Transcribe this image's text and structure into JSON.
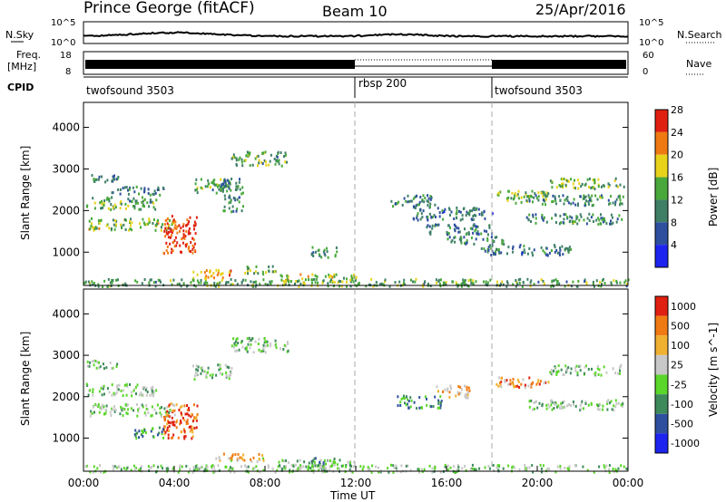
{
  "header": {
    "station": "Prince George (fitACF)",
    "beam": "Beam 10",
    "date": "25/Apr/2016"
  },
  "top_panels": {
    "nsky_label": "N.Sky",
    "nsky_ticks": [
      "10^5",
      "10^0"
    ],
    "nsearch_label": "N.Search",
    "nsearch_ticks": [
      "10^5",
      "10^0"
    ],
    "freq_label_top": "Freq.",
    "freq_label_bottom": "[MHz]",
    "freq_ticks": [
      "18",
      "8"
    ],
    "nave_label": "Nave",
    "nave_ticks": [
      "60",
      "0"
    ],
    "cpid_label": "CPID",
    "cpid_segments": [
      {
        "label": "twofsound 3503",
        "start_hour": 0
      },
      {
        "label": "rbsp 200",
        "start_hour": 12
      },
      {
        "label": "twofsound 3503",
        "start_hour": 18
      }
    ]
  },
  "chart_data": [
    {
      "type": "heatmap",
      "name": "power",
      "ylabel": "Slant Range [km]",
      "yticks": [
        "1000",
        "2000",
        "3000",
        "4000"
      ],
      "ylim": [
        200,
        4600
      ],
      "xlim": [
        0,
        24
      ],
      "colorbar_label": "Power [dB]",
      "colorbar_ticks": [
        "4",
        "8",
        "12",
        "16",
        "20",
        "24",
        "28"
      ],
      "colorbar_colors": [
        "#1d24f0",
        "#2d4f9e",
        "#3e7f66",
        "#48a83a",
        "#e8d21a",
        "#f07a12",
        "#e02010"
      ],
      "bands": [
        {
          "x": [
            0.1,
            1.5
          ],
          "y": [
            2700,
            2900
          ],
          "level": 0.35
        },
        {
          "x": [
            0.1,
            3.2
          ],
          "y": [
            2050,
            2350
          ],
          "level": 0.45
        },
        {
          "x": [
            0.2,
            4.0
          ],
          "y": [
            1550,
            1850
          ],
          "level": 0.55
        },
        {
          "x": [
            1.2,
            3.5
          ],
          "y": [
            2400,
            2600
          ],
          "level": 0.3
        },
        {
          "x": [
            3.5,
            5.0
          ],
          "y": [
            1000,
            1900
          ],
          "level": 0.9
        },
        {
          "x": [
            4.8,
            6.5
          ],
          "y": [
            2450,
            2800
          ],
          "level": 0.45
        },
        {
          "x": [
            6.5,
            9.0
          ],
          "y": [
            3100,
            3450
          ],
          "level": 0.45
        },
        {
          "x": [
            6.0,
            7.0
          ],
          "y": [
            2000,
            2800
          ],
          "level": 0.35
        },
        {
          "x": [
            4.8,
            6.8
          ],
          "y": [
            400,
            600
          ],
          "level": 0.7
        },
        {
          "x": [
            7.0,
            8.5
          ],
          "y": [
            500,
            700
          ],
          "level": 0.5
        },
        {
          "x": [
            8.5,
            12.0
          ],
          "y": [
            300,
            500
          ],
          "level": 0.6
        },
        {
          "x": [
            10.0,
            11.2
          ],
          "y": [
            900,
            1150
          ],
          "level": 0.4
        },
        {
          "x": [
            13.5,
            15.5
          ],
          "y": [
            2100,
            2400
          ],
          "level": 0.35
        },
        {
          "x": [
            14.5,
            18.0
          ],
          "y": [
            1800,
            2100
          ],
          "level": 0.3
        },
        {
          "x": [
            15.0,
            18.0
          ],
          "y": [
            1450,
            1700
          ],
          "level": 0.3
        },
        {
          "x": [
            16.0,
            18.5
          ],
          "y": [
            1200,
            1400
          ],
          "level": 0.35
        },
        {
          "x": [
            18.0,
            20.5
          ],
          "y": [
            2250,
            2500
          ],
          "level": 0.55
        },
        {
          "x": [
            19.0,
            23.8
          ],
          "y": [
            2150,
            2400
          ],
          "level": 0.4
        },
        {
          "x": [
            19.5,
            23.8
          ],
          "y": [
            1700,
            1950
          ],
          "level": 0.4
        },
        {
          "x": [
            20.5,
            23.8
          ],
          "y": [
            2550,
            2800
          ],
          "level": 0.5
        },
        {
          "x": [
            17.5,
            21.5
          ],
          "y": [
            950,
            1200
          ],
          "level": 0.3
        },
        {
          "x": [
            0.0,
            24.0
          ],
          "y": [
            200,
            380
          ],
          "level": 0.45
        }
      ]
    },
    {
      "type": "heatmap",
      "name": "velocity",
      "xlabel": "Time UT",
      "xticks": [
        "00:00",
        "04:00",
        "08:00",
        "12:00",
        "16:00",
        "20:00",
        "00:00"
      ],
      "ylabel": "Slant Range [km]",
      "yticks": [
        "1000",
        "2000",
        "3000",
        "4000"
      ],
      "ylim": [
        200,
        4600
      ],
      "xlim": [
        0,
        24
      ],
      "colorbar_label": "Velocity [m s^-1]",
      "colorbar_ticks": [
        "1000",
        "500",
        "100",
        "25",
        "-25",
        "-100",
        "-500",
        "-1000"
      ],
      "colorbar_colors": [
        "#1d24f0",
        "#2d4f9e",
        "#3e8a5a",
        "#5bd62a",
        "#c8c8c8",
        "#f0b030",
        "#f07a12",
        "#e02010"
      ],
      "bands": [
        {
          "x": [
            0.1,
            1.5
          ],
          "y": [
            2700,
            2900
          ],
          "level": 0.45
        },
        {
          "x": [
            0.1,
            3.2
          ],
          "y": [
            2050,
            2350
          ],
          "level": 0.45
        },
        {
          "x": [
            0.2,
            4.0
          ],
          "y": [
            1550,
            1850
          ],
          "level": 0.45
        },
        {
          "x": [
            3.5,
            5.0
          ],
          "y": [
            1000,
            1900
          ],
          "level": 0.85
        },
        {
          "x": [
            2.2,
            3.5
          ],
          "y": [
            1000,
            1300
          ],
          "level": 0.3
        },
        {
          "x": [
            4.8,
            6.5
          ],
          "y": [
            2450,
            2800
          ],
          "level": 0.45
        },
        {
          "x": [
            6.5,
            9.0
          ],
          "y": [
            3100,
            3450
          ],
          "level": 0.45
        },
        {
          "x": [
            5.8,
            8.0
          ],
          "y": [
            450,
            650
          ],
          "level": 0.65
        },
        {
          "x": [
            8.5,
            12.0
          ],
          "y": [
            300,
            500
          ],
          "level": 0.45
        },
        {
          "x": [
            10.0,
            11.2
          ],
          "y": [
            400,
            550
          ],
          "level": 0.3
        },
        {
          "x": [
            13.8,
            15.8
          ],
          "y": [
            1750,
            2050
          ],
          "level": 0.3
        },
        {
          "x": [
            15.5,
            17.0
          ],
          "y": [
            2000,
            2300
          ],
          "level": 0.7
        },
        {
          "x": [
            18.0,
            20.5
          ],
          "y": [
            2250,
            2500
          ],
          "level": 0.75
        },
        {
          "x": [
            19.5,
            23.8
          ],
          "y": [
            1700,
            1950
          ],
          "level": 0.45
        },
        {
          "x": [
            20.5,
            23.8
          ],
          "y": [
            2550,
            2800
          ],
          "level": 0.45
        },
        {
          "x": [
            0.0,
            24.0
          ],
          "y": [
            200,
            380
          ],
          "level": 0.45
        }
      ]
    }
  ]
}
